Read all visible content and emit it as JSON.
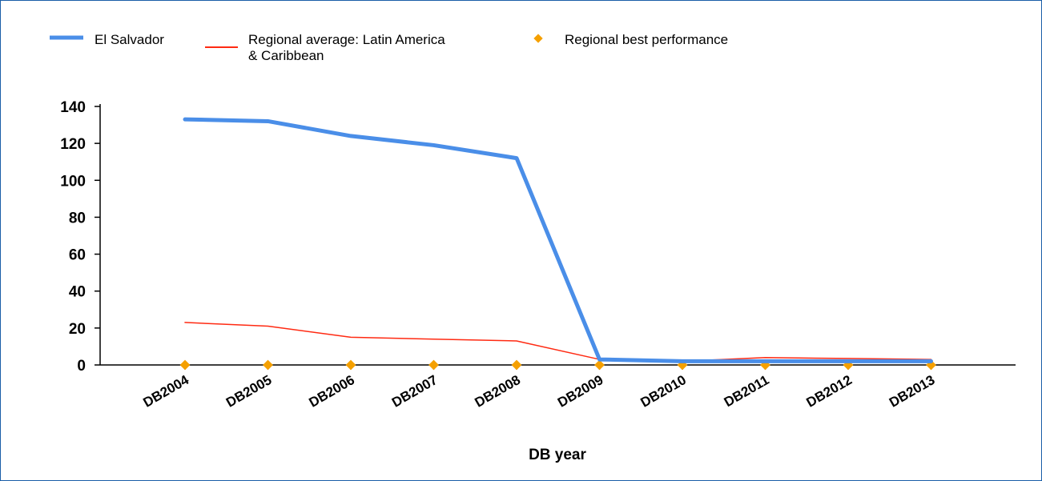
{
  "chart_data": {
    "type": "line",
    "title": "",
    "xlabel": "DB year",
    "ylabel": "",
    "ylim": [
      0,
      140
    ],
    "yticks": [
      0,
      20,
      40,
      60,
      80,
      100,
      120,
      140
    ],
    "grid": false,
    "legend_position": "top-left",
    "categories": [
      "DB2004",
      "DB2005",
      "DB2006",
      "DB2007",
      "DB2008",
      "DB2009",
      "DB2010",
      "DB2011",
      "DB2012",
      "DB2013"
    ],
    "series": [
      {
        "name": "El Salvador",
        "style": "line",
        "color": "#4a8ee8",
        "values": [
          133,
          132,
          124,
          119,
          112,
          3,
          2,
          2,
          2,
          2
        ]
      },
      {
        "name": "Regional average: Latin America & Caribbean",
        "legend_lines": [
          "Regional average: Latin America",
          "& Caribbean"
        ],
        "style": "line",
        "color": "#ff2a12",
        "values": [
          23,
          21,
          15,
          14,
          13,
          3,
          2,
          4,
          3.5,
          3
        ]
      },
      {
        "name": "Regional best performance",
        "style": "marker",
        "color": "#f5a000",
        "values": [
          0,
          0,
          0,
          0,
          0,
          0,
          0,
          0,
          0,
          0
        ]
      }
    ]
  }
}
